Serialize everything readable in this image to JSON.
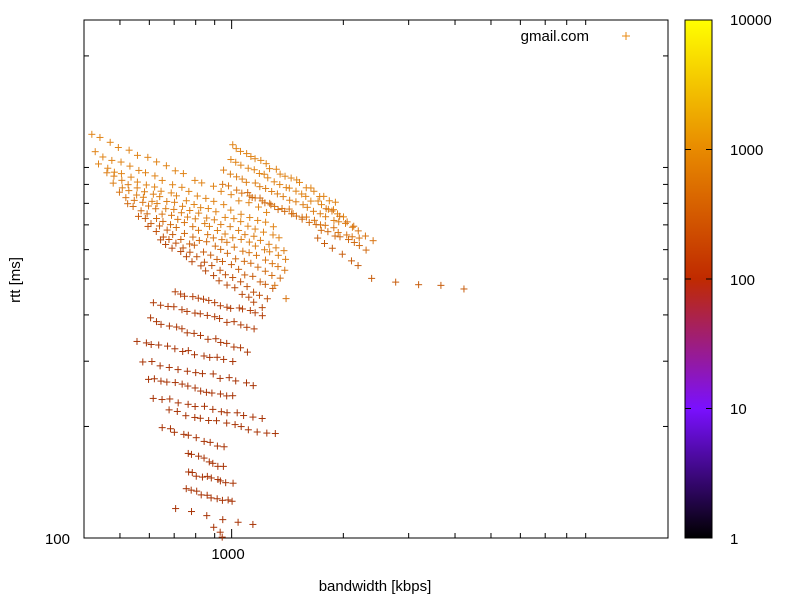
{
  "chart_data": {
    "type": "scatter",
    "title": "",
    "xlabel": "bandwidth [kbps]",
    "ylabel": "rtt [ms]",
    "x_scale": "log",
    "y_scale": "log",
    "x_range": [
      400,
      15000
    ],
    "y_range": [
      100,
      2500
    ],
    "x_ticks": [
      1000
    ],
    "x_tick_labels": [
      "1000"
    ],
    "y_ticks": [
      100
    ],
    "y_tick_labels": [
      "100"
    ],
    "grid": false,
    "legend_position": "top-right",
    "marker": "+",
    "colorbar": {
      "scale": "log",
      "range": [
        1,
        10000
      ],
      "ticks": [
        1,
        10,
        100,
        1000,
        10000
      ],
      "tick_labels": [
        "1",
        "10",
        "100",
        "1000",
        "10000"
      ],
      "palette_stops": [
        {
          "value": 1,
          "color": "#000000"
        },
        {
          "value": 10,
          "color": "#8010ff"
        },
        {
          "value": 100,
          "color": "#c02a00"
        },
        {
          "value": 1000,
          "color": "#e88a00"
        },
        {
          "value": 10000,
          "color": "#ffff00"
        }
      ]
    },
    "series": [
      {
        "name": "gmail.com",
        "color": "#e88a10",
        "clusters": [
          {
            "x_start": 420,
            "y_start": 1230,
            "x_end": 1250,
            "y_end": 760,
            "count": 20,
            "color": "#e08418"
          },
          {
            "x_start": 430,
            "y_start": 1100,
            "x_end": 1300,
            "y_end": 690,
            "count": 22,
            "color": "#e08418"
          },
          {
            "x_start": 440,
            "y_start": 1020,
            "x_end": 1350,
            "y_end": 640,
            "count": 24,
            "color": "#e08418"
          },
          {
            "x_start": 460,
            "y_start": 960,
            "x_end": 1380,
            "y_end": 600,
            "count": 24,
            "color": "#dc7e16"
          },
          {
            "x_start": 480,
            "y_start": 900,
            "x_end": 1400,
            "y_end": 565,
            "count": 24,
            "color": "#dc7e16"
          },
          {
            "x_start": 500,
            "y_start": 850,
            "x_end": 1400,
            "y_end": 530,
            "count": 24,
            "color": "#d87412"
          },
          {
            "x_start": 520,
            "y_start": 800,
            "x_end": 1350,
            "y_end": 500,
            "count": 22,
            "color": "#d06a10"
          },
          {
            "x_start": 560,
            "y_start": 740,
            "x_end": 1300,
            "y_end": 470,
            "count": 20,
            "color": "#c85e0e"
          },
          {
            "x_start": 600,
            "y_start": 690,
            "x_end": 1250,
            "y_end": 440,
            "count": 18,
            "color": "#c0520c"
          },
          {
            "x_start": 640,
            "y_start": 640,
            "x_end": 1200,
            "y_end": 420,
            "count": 16,
            "color": "#b8480a"
          },
          {
            "x_start": 1000,
            "y_start": 1150,
            "x_end": 1900,
            "y_end": 800,
            "count": 22,
            "color": "#e08418"
          },
          {
            "x_start": 1000,
            "y_start": 1050,
            "x_end": 2000,
            "y_end": 740,
            "count": 22,
            "color": "#e08418"
          },
          {
            "x_start": 950,
            "y_start": 980,
            "x_end": 2100,
            "y_end": 690,
            "count": 22,
            "color": "#dc7e16"
          },
          {
            "x_start": 950,
            "y_start": 900,
            "x_end": 2200,
            "y_end": 640,
            "count": 22,
            "color": "#d87412"
          },
          {
            "x_start": 1100,
            "y_start": 850,
            "x_end": 2300,
            "y_end": 600,
            "count": 20,
            "color": "#d06a10"
          },
          {
            "x_start": 1800,
            "y_start": 780,
            "x_end": 2400,
            "y_end": 640,
            "count": 8,
            "color": "#d87412"
          },
          {
            "x_start": 1700,
            "y_start": 650,
            "x_end": 2200,
            "y_end": 540,
            "count": 6,
            "color": "#c85e0e"
          },
          {
            "x_start": 2400,
            "y_start": 500,
            "x_end": 4200,
            "y_end": 470,
            "count": 5,
            "color": "#c85e0e"
          },
          {
            "x_start": 1300,
            "y_start": 480,
            "x_end": 1400,
            "y_end": 440,
            "count": 2,
            "color": "#d87412"
          },
          {
            "x_start": 700,
            "y_start": 460,
            "x_end": 1200,
            "y_end": 400,
            "count": 16,
            "color": "#b4400a"
          },
          {
            "x_start": 620,
            "y_start": 430,
            "x_end": 1150,
            "y_end": 370,
            "count": 16,
            "color": "#b03c08"
          },
          {
            "x_start": 600,
            "y_start": 390,
            "x_end": 1100,
            "y_end": 320,
            "count": 16,
            "color": "#ac3806"
          },
          {
            "x_start": 560,
            "y_start": 340,
            "x_end": 1000,
            "y_end": 300,
            "count": 14,
            "color": "#a83406"
          },
          {
            "x_start": 580,
            "y_start": 300,
            "x_end": 1150,
            "y_end": 260,
            "count": 14,
            "color": "#a83406"
          },
          {
            "x_start": 600,
            "y_start": 270,
            "x_end": 1000,
            "y_end": 240,
            "count": 14,
            "color": "#a83406"
          },
          {
            "x_start": 620,
            "y_start": 240,
            "x_end": 1200,
            "y_end": 210,
            "count": 14,
            "color": "#a83406"
          },
          {
            "x_start": 680,
            "y_start": 220,
            "x_end": 1300,
            "y_end": 190,
            "count": 14,
            "color": "#a83406"
          },
          {
            "x_start": 650,
            "y_start": 200,
            "x_end": 950,
            "y_end": 175,
            "count": 10,
            "color": "#a83406"
          },
          {
            "x_start": 760,
            "y_start": 170,
            "x_end": 950,
            "y_end": 155,
            "count": 8,
            "color": "#a83406"
          },
          {
            "x_start": 760,
            "y_start": 150,
            "x_end": 1000,
            "y_end": 140,
            "count": 10,
            "color": "#a83406"
          },
          {
            "x_start": 760,
            "y_start": 135,
            "x_end": 1000,
            "y_end": 125,
            "count": 10,
            "color": "#a83406"
          },
          {
            "x_start": 700,
            "y_start": 120,
            "x_end": 1150,
            "y_end": 108,
            "count": 6,
            "color": "#a83406"
          },
          {
            "x_start": 900,
            "y_start": 106,
            "x_end": 950,
            "y_end": 100,
            "count": 3,
            "color": "#a83406"
          }
        ]
      }
    ]
  }
}
